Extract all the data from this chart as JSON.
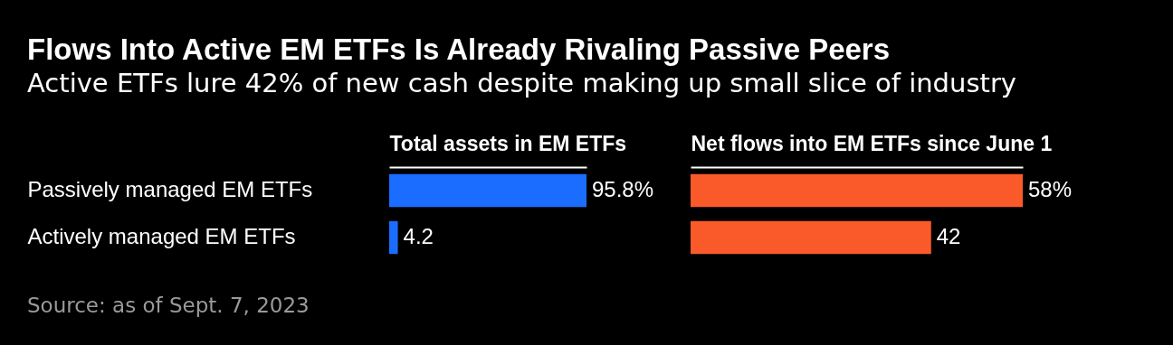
{
  "chart_data": [
    {
      "type": "bar",
      "orientation": "horizontal",
      "title": "Flows Into Active EM ETFs Is Already Rivaling Passive Peers",
      "subtitle": "Active ETFs lure 42% of new cash despite making up small slice of industry",
      "xlabel": "Total assets in EM ETFs",
      "categories": [
        "Passively managed EM ETFs",
        "Actively managed EM ETFs"
      ],
      "values": [
        95.8,
        4.2
      ],
      "value_labels": [
        "95.8%",
        "4.2"
      ],
      "color": "#1a6dff",
      "tick_labels": "y",
      "annotations": [
        "Source: as of Sept. 7, 2023"
      ]
    },
    {
      "type": "bar",
      "orientation": "horizontal",
      "xlabel": "Net flows into EM ETFs since June 1",
      "categories": [
        null,
        null
      ],
      "values": [
        58,
        42
      ],
      "value_labels": [
        "58%",
        "42"
      ],
      "color": "#fa5a2a",
      "tick_labels": false
    }
  ]
}
